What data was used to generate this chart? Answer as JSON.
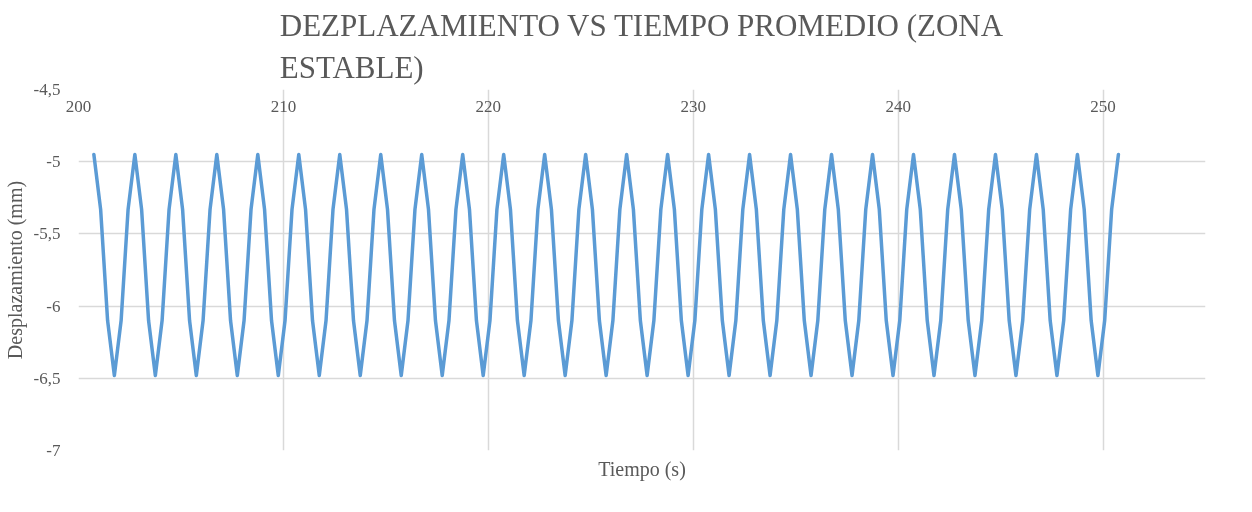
{
  "chart_data": {
    "type": "line",
    "title": "DEZPLAZAMIENTO VS TIEMPO PROMEDIO (ZONA ESTABLE)",
    "xlabel": "Tiempo (s)",
    "ylabel": "Desplazamiento (mm)",
    "xlim": [
      200,
      255
    ],
    "xticks": [
      200,
      210,
      220,
      230,
      240,
      250
    ],
    "ylim": [
      -7,
      -4.5
    ],
    "yticks": [
      {
        "value": -7,
        "label": "-7"
      },
      {
        "value": -6.5,
        "label": "-6,5"
      },
      {
        "value": -6,
        "label": "-6"
      },
      {
        "value": -5.5,
        "label": "-5,5"
      },
      {
        "value": -5,
        "label": "-5"
      },
      {
        "value": -4.5,
        "label": "-4,5"
      }
    ],
    "grid": true,
    "series": [
      {
        "color": "#5b9bd5",
        "x": [
          200.75,
          201.08,
          201.42,
          201.75,
          202.08,
          202.42,
          202.75,
          203.08,
          203.42,
          203.75,
          204.08,
          204.42,
          204.75,
          205.08,
          205.42,
          205.75,
          206.08,
          206.42,
          206.75,
          207.08,
          207.42,
          207.75,
          208.08,
          208.42,
          208.75,
          209.08,
          209.42,
          209.75,
          210.08,
          210.42,
          210.75,
          211.08,
          211.42,
          211.75,
          212.08,
          212.42,
          212.75,
          213.08,
          213.42,
          213.75,
          214.08,
          214.42,
          214.75,
          215.08,
          215.42,
          215.75,
          216.08,
          216.42,
          216.75,
          217.08,
          217.42,
          217.75,
          218.08,
          218.42,
          218.75,
          219.08,
          219.42,
          219.75,
          220.08,
          220.42,
          220.75,
          221.08,
          221.42,
          221.75,
          222.08,
          222.42,
          222.75,
          223.08,
          223.42,
          223.75,
          224.08,
          224.42,
          224.75,
          225.08,
          225.42,
          225.75,
          226.08,
          226.42,
          226.75,
          227.08,
          227.42,
          227.75,
          228.08,
          228.42,
          228.75,
          229.08,
          229.42,
          229.75,
          230.08,
          230.42,
          230.75,
          231.08,
          231.42,
          231.75,
          232.08,
          232.42,
          232.75,
          233.08,
          233.42,
          233.75,
          234.08,
          234.42,
          234.75,
          235.08,
          235.42,
          235.75,
          236.08,
          236.42,
          236.75,
          237.08,
          237.42,
          237.75,
          238.08,
          238.42,
          238.75,
          239.08,
          239.42,
          239.75,
          240.08,
          240.42,
          240.75,
          241.08,
          241.42,
          241.75,
          242.08,
          242.42,
          242.75,
          243.08,
          243.42,
          243.75,
          244.08,
          244.42,
          244.75,
          245.08,
          245.42,
          245.75,
          246.08,
          246.42,
          246.75,
          247.08,
          247.42,
          247.75,
          248.08,
          248.42,
          248.75,
          249.08,
          249.42,
          249.75,
          250.08,
          250.42,
          250.75
        ],
        "values": [
          -4.95,
          -5.33,
          -6.1,
          -6.48,
          -6.1,
          -5.33,
          -4.95,
          -5.33,
          -6.1,
          -6.48,
          -6.1,
          -5.33,
          -4.95,
          -5.33,
          -6.1,
          -6.48,
          -6.1,
          -5.33,
          -4.95,
          -5.33,
          -6.1,
          -6.48,
          -6.1,
          -5.33,
          -4.95,
          -5.33,
          -6.1,
          -6.48,
          -6.1,
          -5.33,
          -4.95,
          -5.33,
          -6.1,
          -6.48,
          -6.1,
          -5.33,
          -4.95,
          -5.33,
          -6.1,
          -6.48,
          -6.1,
          -5.33,
          -4.95,
          -5.33,
          -6.1,
          -6.48,
          -6.1,
          -5.33,
          -4.95,
          -5.33,
          -6.1,
          -6.48,
          -6.1,
          -5.33,
          -4.95,
          -5.33,
          -6.1,
          -6.48,
          -6.1,
          -5.33,
          -4.95,
          -5.33,
          -6.1,
          -6.48,
          -6.1,
          -5.33,
          -4.95,
          -5.33,
          -6.1,
          -6.48,
          -6.1,
          -5.33,
          -4.95,
          -5.33,
          -6.1,
          -6.48,
          -6.1,
          -5.33,
          -4.95,
          -5.33,
          -6.1,
          -6.48,
          -6.1,
          -5.33,
          -4.95,
          -5.33,
          -6.1,
          -6.48,
          -6.1,
          -5.33,
          -4.95,
          -5.33,
          -6.1,
          -6.48,
          -6.1,
          -5.33,
          -4.95,
          -5.33,
          -6.1,
          -6.48,
          -6.1,
          -5.33,
          -4.95,
          -5.33,
          -6.1,
          -6.48,
          -6.1,
          -5.33,
          -4.95,
          -5.33,
          -6.1,
          -6.48,
          -6.1,
          -5.33,
          -4.95,
          -5.33,
          -6.1,
          -6.48,
          -6.1,
          -5.33,
          -4.95,
          -5.33,
          -6.1,
          -6.48,
          -6.1,
          -5.33,
          -4.95,
          -5.33,
          -6.1,
          -6.48,
          -6.1,
          -5.33,
          -4.95,
          -5.33,
          -6.1,
          -6.48,
          -6.1,
          -5.33,
          -4.95,
          -5.33,
          -6.1,
          -6.48,
          -6.1,
          -5.33,
          -4.95,
          -5.33,
          -6.1,
          -6.48,
          -6.1,
          -5.33,
          -4.95
        ]
      }
    ]
  }
}
